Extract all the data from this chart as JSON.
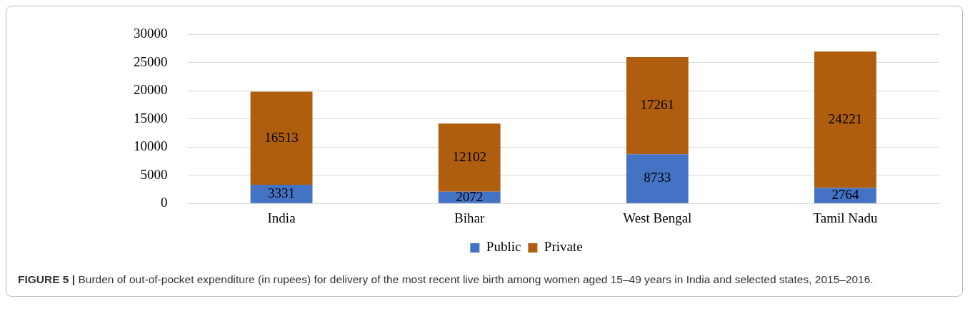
{
  "chart_data": {
    "type": "bar",
    "categories": [
      "India",
      "Bihar",
      "West Bengal",
      "Tamil Nadu"
    ],
    "series": [
      {
        "name": "Public",
        "color": "#4472c4",
        "values": [
          3331,
          2072,
          8733,
          2764
        ]
      },
      {
        "name": "Private",
        "color": "#ae5e0e",
        "values": [
          16513,
          12102,
          17261,
          24221
        ]
      }
    ],
    "stacked": true,
    "data_labels": true,
    "ylim": [
      0,
      30000
    ],
    "yticks": [
      0,
      5000,
      10000,
      15000,
      20000,
      25000,
      30000
    ],
    "grid": "y",
    "legend": "bottom",
    "annotations": [
      "FIGURE 5 | Burden of out-of-pocket expenditure (in rupees) for delivery of the most recent live birth among women aged 15–49 years in India and selected states, 2015–2016."
    ]
  }
}
